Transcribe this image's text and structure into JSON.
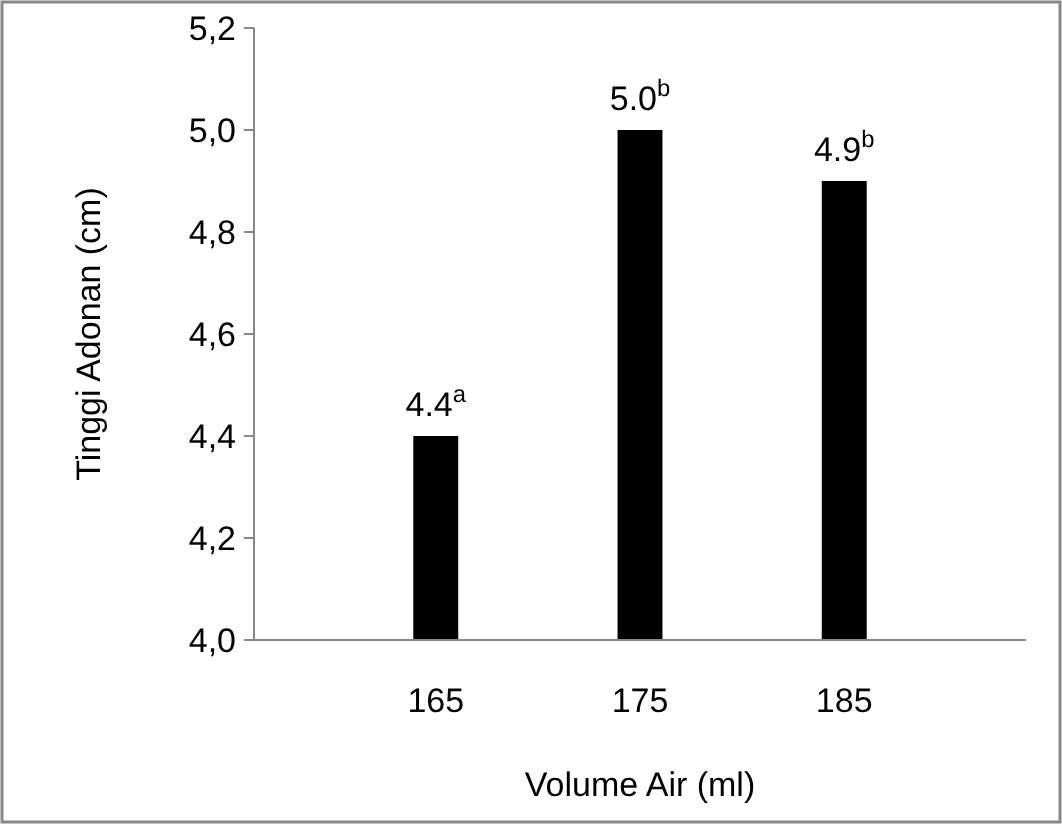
{
  "chart_data": {
    "type": "bar",
    "xlabel": "Volume Air (ml)",
    "ylabel": "Tinggi Adonan (cm)",
    "categories": [
      "165",
      "175",
      "185"
    ],
    "values": [
      4.4,
      5.0,
      4.9
    ],
    "color": "#000000",
    "value_labels": [
      "4.4$^{a}$",
      "5.0$^{b}$",
      "4.9$^{b}$"
    ],
    "ylim": [
      4.0,
      5.2
    ],
    "yticks": [
      {
        "value": 4.0,
        "label": "4,0"
      },
      {
        "value": 4.2,
        "label": "4,2"
      },
      {
        "value": 4.4,
        "label": "4,4"
      },
      {
        "value": 4.6,
        "label": "4,6"
      },
      {
        "value": 4.8,
        "label": "4,8"
      },
      {
        "value": 5.0,
        "label": "5,0"
      },
      {
        "value": 5.2,
        "label": "5,2"
      }
    ],
    "grid": false
  }
}
